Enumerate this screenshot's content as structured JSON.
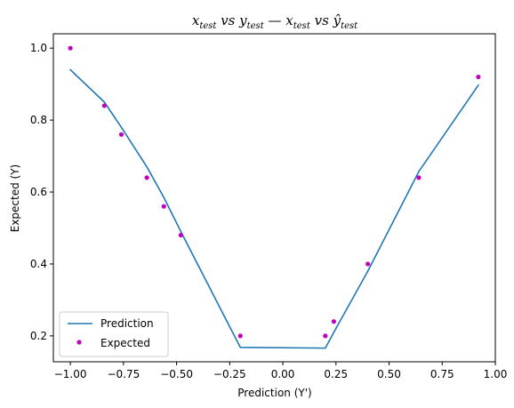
{
  "chart_data": {
    "type": "line",
    "title": {
      "a_base": "x",
      "a_sub": "test",
      "vs1": "vs",
      "b_base": "y",
      "b_sub": "test",
      "sep": "—",
      "c_base": "x",
      "c_sub": "test",
      "vs2": "vs",
      "d_base": "ŷ",
      "d_sub": "test"
    },
    "xlabel": "Prediction (Y')",
    "ylabel": "Expected (Y)",
    "xlim": [
      -1.08,
      1.0
    ],
    "ylim": [
      0.128,
      1.04
    ],
    "xticks": [
      -1.0,
      -0.75,
      -0.5,
      -0.25,
      0.0,
      0.25,
      0.5,
      0.75,
      1.0
    ],
    "xtick_labels": [
      "−1.00",
      "−0.75",
      "−0.50",
      "−0.25",
      "0.00",
      "0.25",
      "0.50",
      "0.75",
      "1.00"
    ],
    "yticks": [
      0.2,
      0.4,
      0.6,
      0.8,
      1.0
    ],
    "ytick_labels": [
      "0.2",
      "0.4",
      "0.6",
      "0.8",
      "1.0"
    ],
    "grid": false,
    "legend_position": "lower-left",
    "series": [
      {
        "name": "Prediction",
        "kind": "line",
        "color": "#1f77b4",
        "x": [
          -1.0,
          -0.84,
          -0.76,
          -0.64,
          -0.56,
          -0.48,
          -0.2,
          0.2,
          0.24,
          0.4,
          0.64,
          0.92
        ],
        "y": [
          0.94,
          0.85,
          0.78,
          0.67,
          0.585,
          0.49,
          0.168,
          0.166,
          0.21,
          0.38,
          0.657,
          0.897
        ]
      },
      {
        "name": "Expected",
        "kind": "scatter",
        "color": "#bf00bf",
        "x": [
          -1.0,
          -0.84,
          -0.76,
          -0.64,
          -0.56,
          -0.48,
          -0.2,
          0.2,
          0.24,
          0.4,
          0.64,
          0.92
        ],
        "y": [
          1.0,
          0.84,
          0.76,
          0.64,
          0.56,
          0.48,
          0.2,
          0.2,
          0.24,
          0.4,
          0.64,
          0.92
        ]
      }
    ]
  }
}
